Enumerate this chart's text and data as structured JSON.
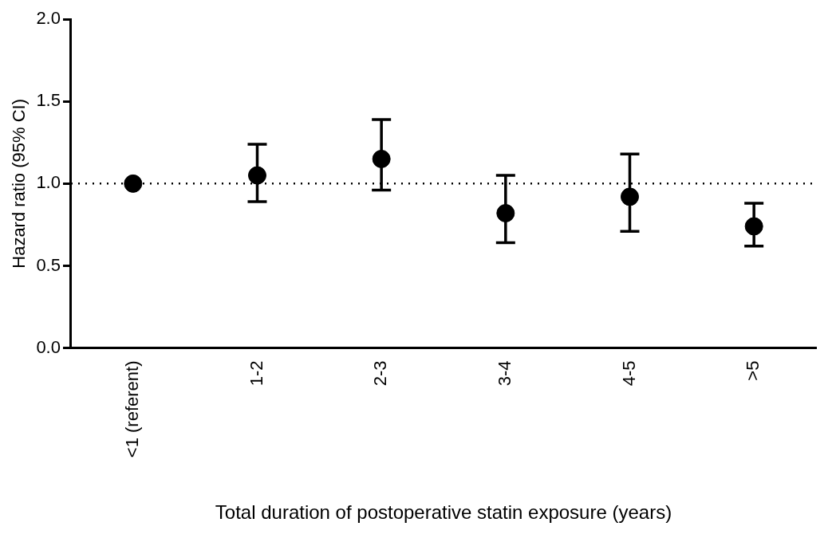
{
  "chart_data": {
    "type": "scatter",
    "categories": [
      "<1 (referent)",
      "1-2",
      "2-3",
      "3-4",
      "4-5",
      ">5"
    ],
    "values": [
      1.0,
      1.05,
      1.15,
      0.82,
      0.92,
      0.74
    ],
    "errors": [
      null,
      [
        0.89,
        1.24
      ],
      [
        0.96,
        1.39
      ],
      [
        0.64,
        1.05
      ],
      [
        0.71,
        1.18
      ],
      [
        0.62,
        0.88
      ]
    ],
    "color": "#000000",
    "marker": "circle",
    "xlabel": "Total duration of postoperative statin exposure (years)",
    "ylabel": "Hazard ratio (95% CI)",
    "ylim": [
      0,
      2
    ],
    "yticks": [
      {
        "value": 0,
        "label": "0.0"
      },
      0.5,
      {
        "value": 1,
        "label": "1.0"
      },
      1.5,
      {
        "value": 2,
        "label": "2.0"
      }
    ],
    "ref_lines": [
      {
        "axis": "y",
        "value": 1,
        "line_style": "dotted",
        "color": "#000000"
      }
    ],
    "grid": false,
    "legend": false
  }
}
